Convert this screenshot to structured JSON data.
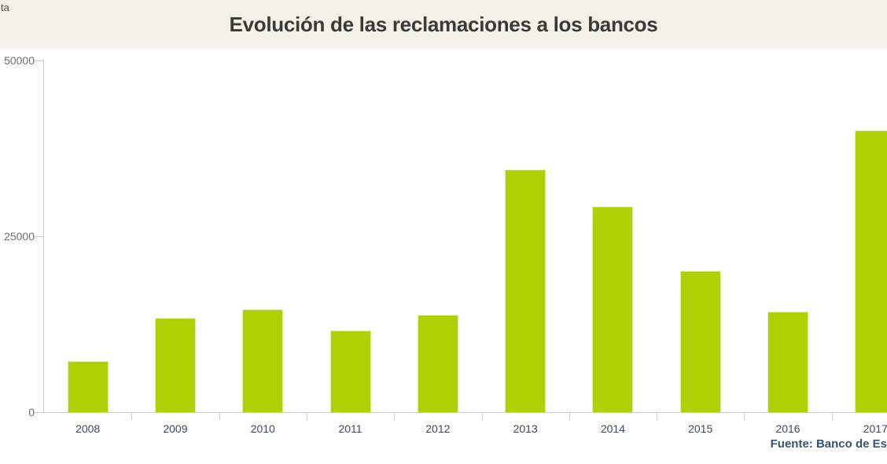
{
  "page": {
    "top_left_fragment": "ta",
    "source_note": "Fuente: Banco de Es"
  },
  "chart_data": {
    "type": "bar",
    "title": "Evolución de las reclamaciones a los bancos",
    "categories": [
      "2008",
      "2009",
      "2010",
      "2011",
      "2012",
      "2013",
      "2014",
      "2015",
      "2016",
      "2017"
    ],
    "values": [
      7300,
      13400,
      14600,
      11600,
      13800,
      34500,
      29200,
      20100,
      14300,
      40100
    ],
    "xlabel": "",
    "ylabel": "",
    "ylim": [
      0,
      50000
    ],
    "yticks": [
      0,
      25000,
      50000
    ],
    "ytick_labels": [
      "0",
      "25000",
      "50000"
    ],
    "grid": "off",
    "legend_position": "none",
    "bar_color": "#aed104",
    "bar_edge_color": "#e3efad",
    "background_color": "#ffffff",
    "header_background_color": "#f3f2e8",
    "axis_line_color": "#cfccc3",
    "title_color": "#3a3a38",
    "x_label_color": "#3f4a5c",
    "y_label_color": "#6e6e70",
    "source_color": "#3a526d"
  }
}
